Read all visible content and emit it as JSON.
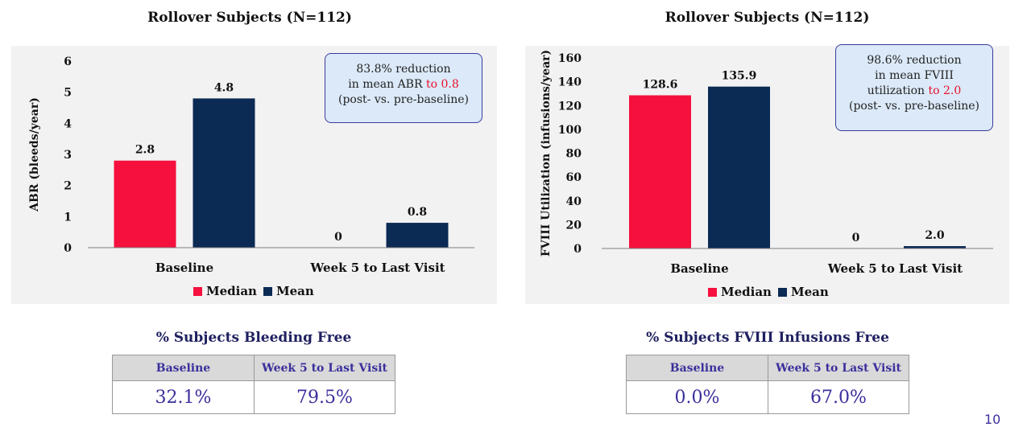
{
  "chart_data": [
    {
      "type": "bar",
      "title": "Rollover Subjects (N=112)",
      "ylabel": "ABR (bleeds/year)",
      "categories": [
        "Baseline",
        "Week 5 to Last Visit"
      ],
      "series": [
        {
          "name": "Median",
          "values": [
            2.8,
            0
          ],
          "labels": [
            "2.8",
            "0"
          ],
          "color": "#f5103e"
        },
        {
          "name": "Mean",
          "values": [
            4.8,
            0.8
          ],
          "labels": [
            "4.8",
            "0.8"
          ],
          "color": "#0b2a54"
        }
      ],
      "ylim": [
        0,
        6
      ],
      "yticks": [
        0,
        1,
        2,
        3,
        4,
        5,
        6
      ],
      "legend_position": "bottom-center",
      "grid": false,
      "callout": {
        "line1": "83.8% reduction",
        "line2_pre": "in mean ABR ",
        "line2_highlight": "to 0.8",
        "line3": "(post- vs. pre-baseline)"
      }
    },
    {
      "type": "bar",
      "title": "Rollover Subjects (N=112)",
      "ylabel": "FVIII Utilization (infusions/year)",
      "categories": [
        "Baseline",
        "Week 5 to Last Visit"
      ],
      "series": [
        {
          "name": "Median",
          "values": [
            128.6,
            0
          ],
          "labels": [
            "128.6",
            "0"
          ],
          "color": "#f5103e"
        },
        {
          "name": "Mean",
          "values": [
            135.9,
            2.0
          ],
          "labels": [
            "135.9",
            "2.0"
          ],
          "color": "#0b2a54"
        }
      ],
      "ylim": [
        0,
        160
      ],
      "yticks": [
        0,
        20,
        40,
        60,
        80,
        100,
        120,
        140,
        160
      ],
      "legend_position": "bottom-center",
      "grid": false,
      "callout": {
        "line1": "98.6% reduction",
        "line2": "in mean FVIII",
        "line3_pre": "utilization ",
        "line3_highlight": "to 2.0",
        "line4": "(post- vs. pre-baseline)"
      }
    }
  ],
  "tables": {
    "left": {
      "title": "% Subjects Bleeding Free",
      "headers": [
        "Baseline",
        "Week 5 to Last Visit"
      ],
      "values": [
        "32.1%",
        "79.5%"
      ]
    },
    "right": {
      "title": "% Subjects FVIII Infusions Free",
      "headers": [
        "Baseline",
        "Week 5 to Last Visit"
      ],
      "values": [
        "0.0%",
        "67.0%"
      ]
    }
  },
  "page_number": "10"
}
